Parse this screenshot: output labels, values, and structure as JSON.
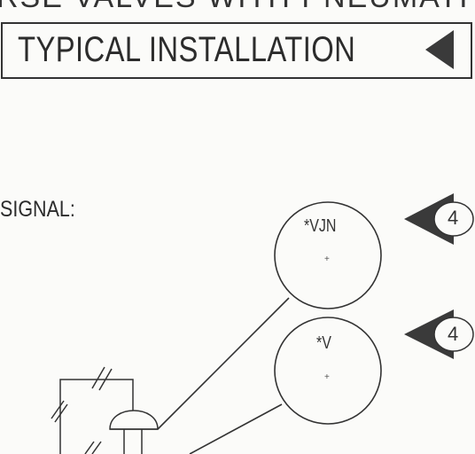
{
  "header": {
    "cut_text": "RSE VALVES WITH PNEUMATI",
    "title": "TYPICAL INSTALLATION"
  },
  "diagram": {
    "signal_label": "SIGNAL:",
    "instruments": [
      {
        "label": "*VJN"
      },
      {
        "label": "*V"
      }
    ],
    "tab_numbers": [
      "4",
      "4"
    ]
  },
  "colors": {
    "ink": "#2a2a2a",
    "paper": "#fbfbf9",
    "tab_fill": "#3a3a3a"
  }
}
